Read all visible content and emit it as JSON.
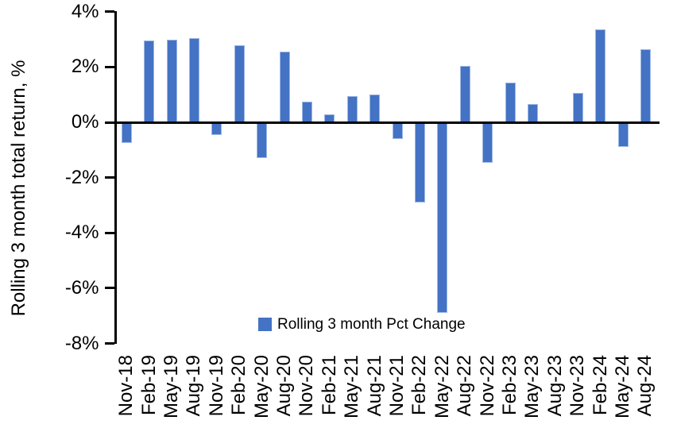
{
  "chart_data": {
    "type": "bar",
    "title": "",
    "categories": [
      "Nov-18",
      "Feb-19",
      "May-19",
      "Aug-19",
      "Nov-19",
      "Feb-20",
      "May-20",
      "Aug-20",
      "Nov-20",
      "Feb-21",
      "May-21",
      "Aug-21",
      "Nov-21",
      "Feb-22",
      "May-22",
      "Aug-22",
      "Nov-22",
      "Feb-23",
      "May-23",
      "Aug-23",
      "Nov-23",
      "Feb-24",
      "May-24",
      "Aug-24"
    ],
    "series": [
      {
        "name": "Rolling 3 month Pct Change",
        "values": [
          -0.75,
          2.95,
          3.0,
          3.05,
          -0.45,
          2.8,
          -1.3,
          2.55,
          0.75,
          0.3,
          0.95,
          1.0,
          -0.6,
          -2.9,
          -6.9,
          2.05,
          -1.45,
          1.45,
          0.65,
          0,
          1.05,
          3.35,
          -0.9,
          2.65
        ]
      }
    ],
    "xlabel": "",
    "ylabel": "Rolling 3 month total return, %",
    "ylim": [
      -8,
      4
    ],
    "yticks": [
      4,
      2,
      0,
      -2,
      -4,
      -6,
      -8
    ],
    "ytick_suffix": "%",
    "grid": false,
    "legend_position": "bottom-center",
    "bar_color": "#4472C4",
    "bar_border_color": "#9DB8E4",
    "axis_color": "#000000"
  }
}
